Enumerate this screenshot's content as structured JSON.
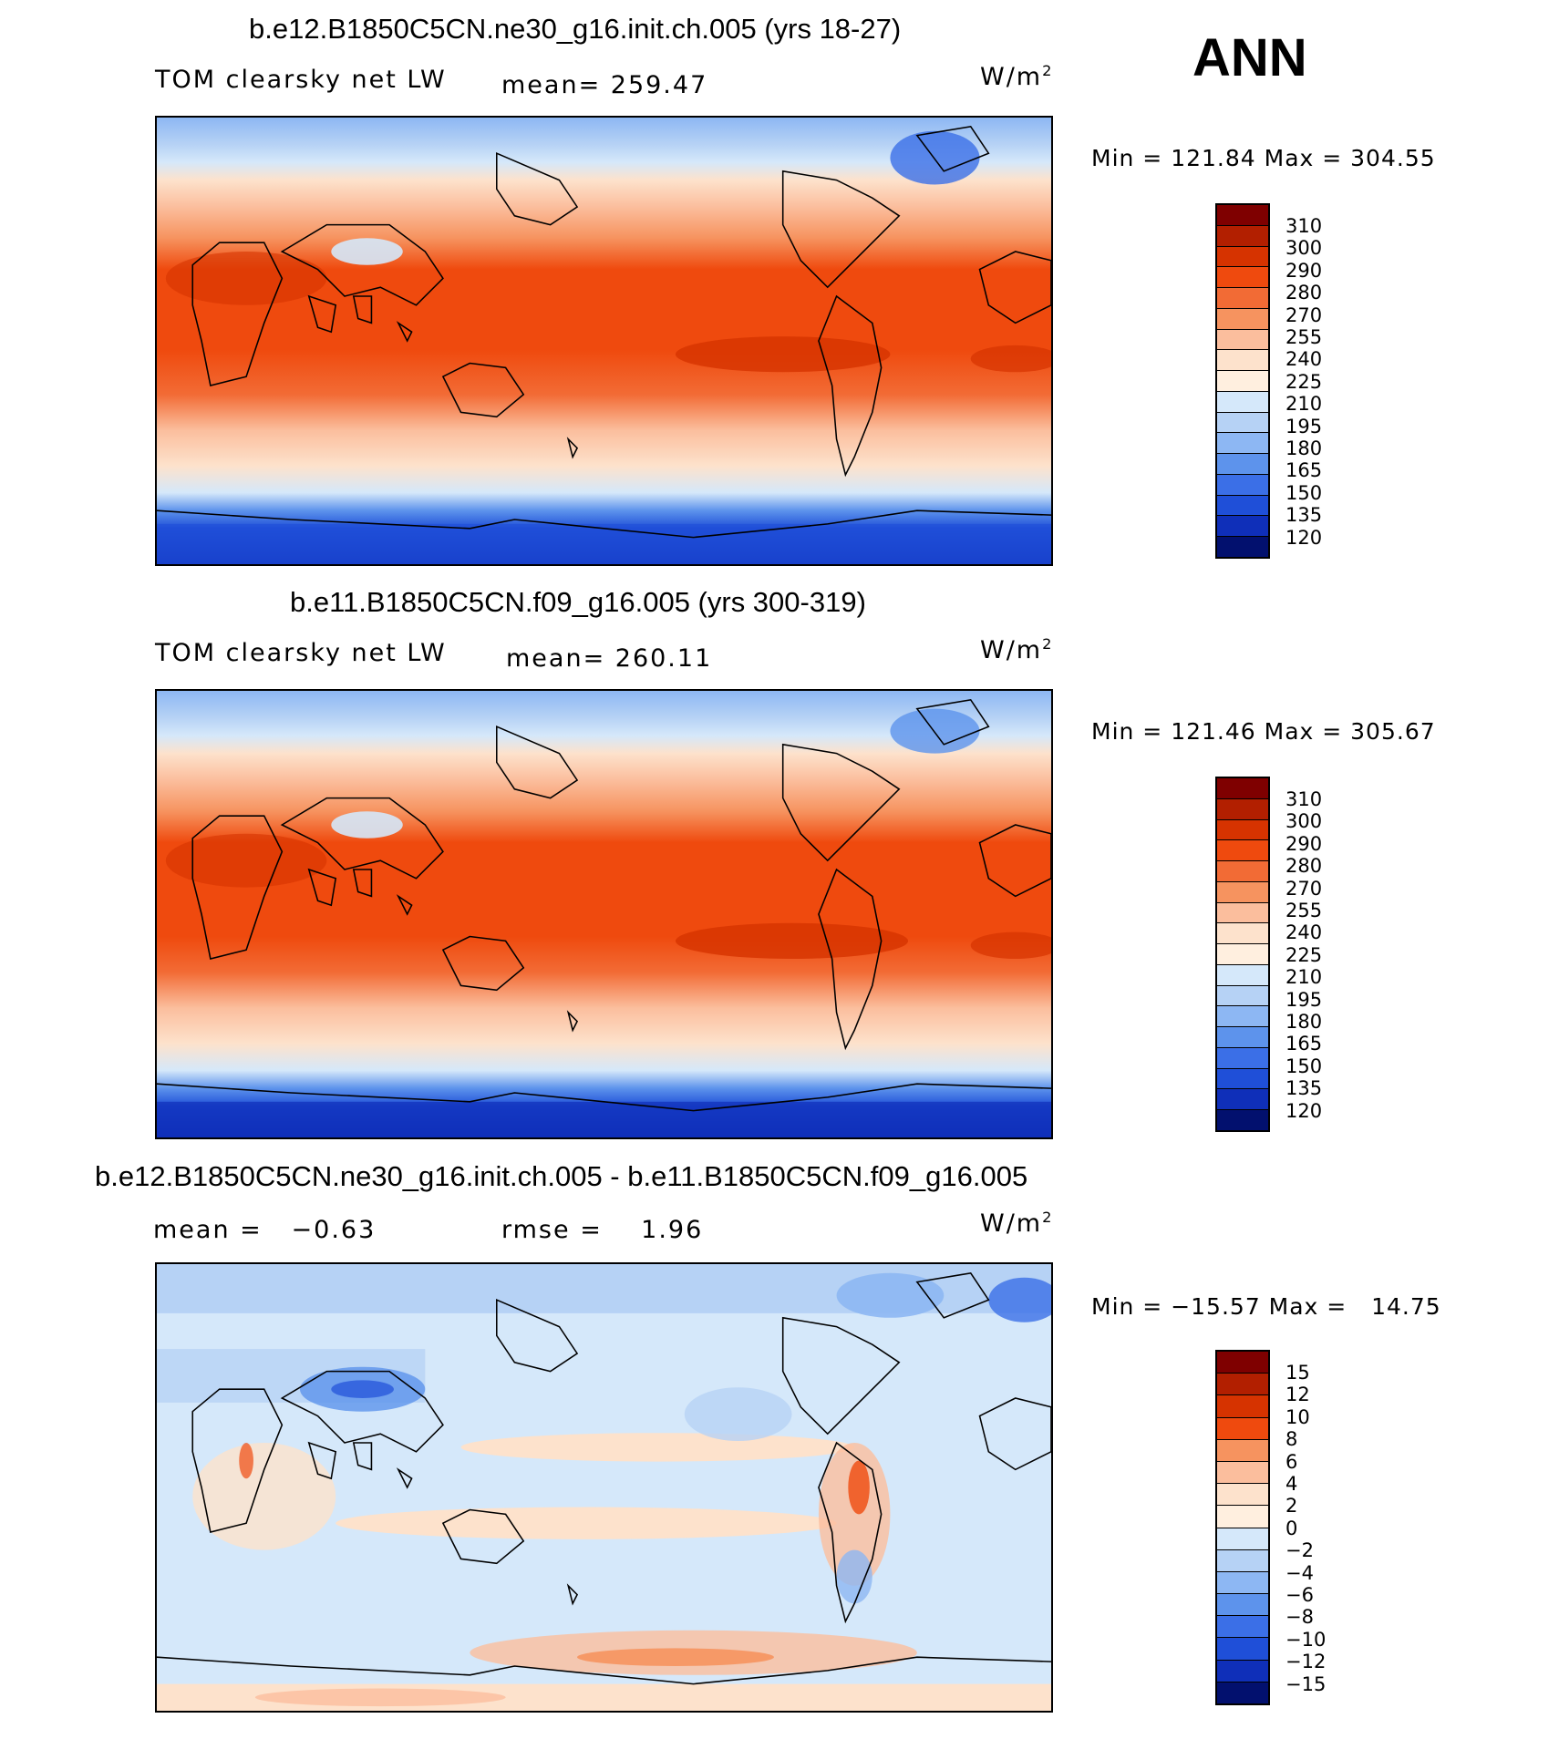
{
  "ann_label": "ANN",
  "colors": {
    "red_scale": [
      "#7f0000",
      "#b21f00",
      "#d63300",
      "#ef4a0e",
      "#f26b35",
      "#f6935f",
      "#fbbe9d",
      "#fde2cc",
      "#ffefdf",
      "#d5e8fa",
      "#b6d2f5",
      "#8db7f3",
      "#5d93ec",
      "#3b6fe7",
      "#1f4fd8",
      "#0f2fb9",
      "#061b93",
      "#02106e"
    ],
    "diff_scale": [
      "#7f0000",
      "#b21f00",
      "#d63300",
      "#ef4a0e",
      "#f6935f",
      "#fbbe9d",
      "#fde2cc",
      "#d5e8fa",
      "#b6d2f5",
      "#8db7f3",
      "#5d93ec",
      "#3b6fe7",
      "#1f4fd8",
      "#0f2fb9",
      "#02106e"
    ]
  },
  "panels": [
    {
      "title": "b.e12.B1850C5CN.ne30_g16.init.ch.005 (yrs 18-27)",
      "left_label": "TOM clearsky net LW",
      "center_label": "mean= 259.47",
      "unit_text": "W/m",
      "unit_sup": "2",
      "minmax": "Min = 121.84 Max = 304.55",
      "colorbar_ticks": [
        "310",
        "300",
        "290",
        "280",
        "270",
        "255",
        "240",
        "225",
        "210",
        "195",
        "180",
        "165",
        "150",
        "135",
        "120"
      ]
    },
    {
      "title": "b.e11.B1850C5CN.f09_g16.005 (yrs 300-319)",
      "left_label": "TOM clearsky net LW",
      "center_label": "mean= 260.11",
      "unit_text": "W/m",
      "unit_sup": "2",
      "minmax": "Min = 121.46 Max = 305.67",
      "colorbar_ticks": [
        "310",
        "300",
        "290",
        "280",
        "270",
        "255",
        "240",
        "225",
        "210",
        "195",
        "180",
        "165",
        "150",
        "135",
        "120"
      ]
    },
    {
      "title": "b.e12.B1850C5CN.ne30_g16.init.ch.005 - b.e11.B1850C5CN.f09_g16.005",
      "left_label": "mean =   −0.63",
      "center_label": "rmse =    1.96",
      "unit_text": "W/m",
      "unit_sup": "2",
      "minmax": "Min = −15.57 Max =   14.75",
      "colorbar_ticks": [
        "15",
        "12",
        "10",
        "8",
        "6",
        "4",
        "2",
        "0",
        "−2",
        "−4",
        "−6",
        "−8",
        "−10",
        "−12",
        "−15"
      ]
    }
  ]
}
